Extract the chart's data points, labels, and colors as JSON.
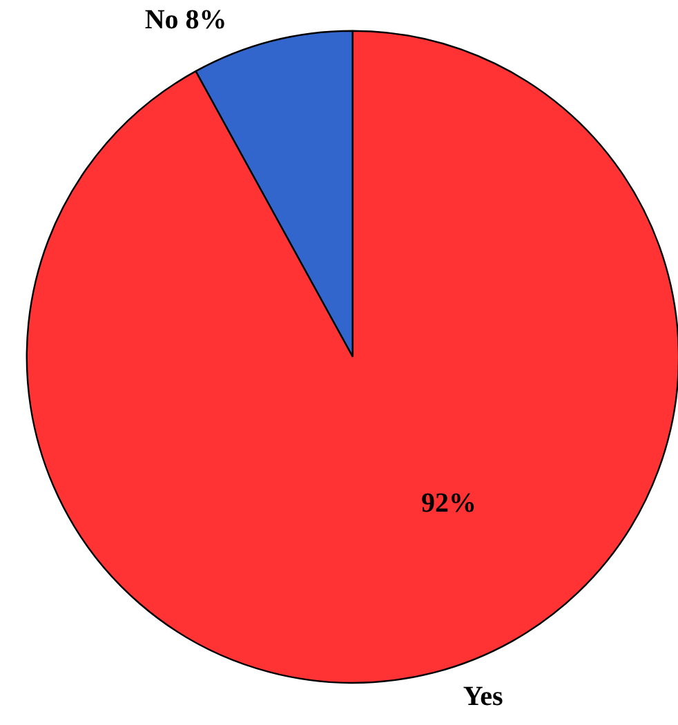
{
  "chart_data": {
    "type": "pie",
    "categories": [
      "No",
      "Yes"
    ],
    "values": [
      8,
      92
    ],
    "colors": [
      "#3366cc",
      "#ff3333"
    ],
    "value_labels": [
      "8%",
      "92%"
    ]
  }
}
